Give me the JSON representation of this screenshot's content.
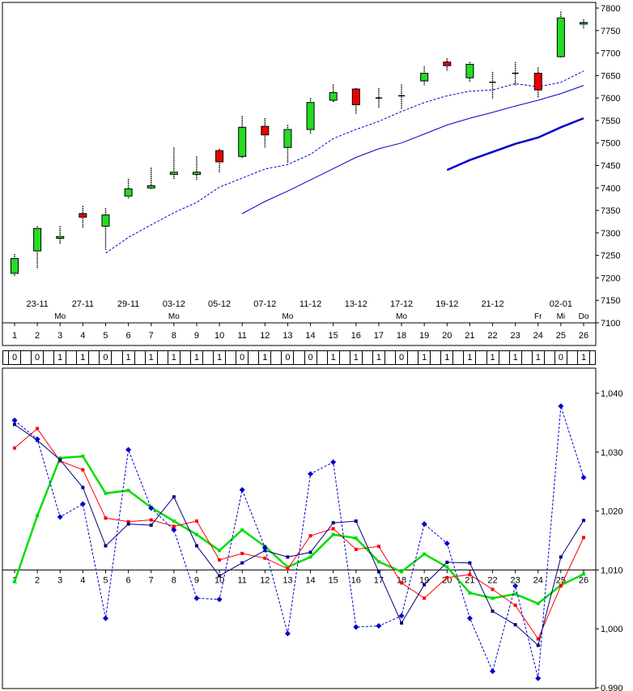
{
  "chart_data": [
    {
      "type": "candlestick",
      "title": "",
      "x": [
        1,
        2,
        3,
        4,
        5,
        6,
        7,
        8,
        9,
        10,
        11,
        12,
        13,
        14,
        15,
        16,
        17,
        18,
        19,
        20,
        21,
        22,
        23,
        24,
        25,
        26
      ],
      "ylim": [
        7100,
        7800
      ],
      "yticks": [
        7100,
        7150,
        7200,
        7250,
        7300,
        7350,
        7400,
        7450,
        7500,
        7550,
        7600,
        7650,
        7700,
        7750,
        7800
      ],
      "date_labels": [
        {
          "x": 2,
          "text": "23-11"
        },
        {
          "x": 4,
          "text": "27-11"
        },
        {
          "x": 6,
          "text": "29-11"
        },
        {
          "x": 8,
          "text": "03-12"
        },
        {
          "x": 10,
          "text": "05-12"
        },
        {
          "x": 12,
          "text": "07-12"
        },
        {
          "x": 14,
          "text": "11-12"
        },
        {
          "x": 16,
          "text": "13-12"
        },
        {
          "x": 18,
          "text": "17-12"
        },
        {
          "x": 20,
          "text": "19-12"
        },
        {
          "x": 22,
          "text": "21-12"
        },
        {
          "x": 25,
          "text": "02-01"
        }
      ],
      "day_labels": [
        {
          "x": 3,
          "text": "Mo"
        },
        {
          "x": 8,
          "text": "Mo"
        },
        {
          "x": 13,
          "text": "Mo"
        },
        {
          "x": 18,
          "text": "Mo"
        },
        {
          "x": 24,
          "text": "Fr"
        },
        {
          "x": 25,
          "text": "Mi"
        },
        {
          "x": 26,
          "text": "Do"
        }
      ],
      "candles": [
        {
          "x": 1,
          "open": 7210,
          "close": 7243,
          "high": 7253,
          "low": 7203
        },
        {
          "x": 2,
          "open": 7260,
          "close": 7310,
          "high": 7315,
          "low": 7220
        },
        {
          "x": 3,
          "open": 7288,
          "close": 7292,
          "high": 7315,
          "low": 7275
        },
        {
          "x": 4,
          "open": 7343,
          "close": 7335,
          "high": 7360,
          "low": 7310
        },
        {
          "x": 5,
          "open": 7315,
          "close": 7340,
          "high": 7355,
          "low": 7262
        },
        {
          "x": 6,
          "open": 7382,
          "close": 7398,
          "high": 7420,
          "low": 7375
        },
        {
          "x": 7,
          "open": 7400,
          "close": 7405,
          "high": 7445,
          "low": 7398
        },
        {
          "x": 8,
          "open": 7430,
          "close": 7435,
          "high": 7490,
          "low": 7420
        },
        {
          "x": 9,
          "open": 7430,
          "close": 7435,
          "high": 7470,
          "low": 7418
        },
        {
          "x": 10,
          "open": 7483,
          "close": 7458,
          "high": 7487,
          "low": 7435
        },
        {
          "x": 11,
          "open": 7470,
          "close": 7535,
          "high": 7560,
          "low": 7465
        },
        {
          "x": 12,
          "open": 7537,
          "close": 7518,
          "high": 7555,
          "low": 7490
        },
        {
          "x": 13,
          "open": 7490,
          "close": 7530,
          "high": 7540,
          "low": 7455
        },
        {
          "x": 14,
          "open": 7530,
          "close": 7590,
          "high": 7600,
          "low": 7520
        },
        {
          "x": 15,
          "open": 7595,
          "close": 7612,
          "high": 7630,
          "low": 7590
        },
        {
          "x": 16,
          "open": 7620,
          "close": 7585,
          "high": 7622,
          "low": 7565
        },
        {
          "x": 17,
          "open": 7600,
          "close": 7600,
          "high": 7622,
          "low": 7578
        },
        {
          "x": 18,
          "open": 7605,
          "close": 7605,
          "high": 7630,
          "low": 7575
        },
        {
          "x": 19,
          "open": 7638,
          "close": 7655,
          "high": 7670,
          "low": 7628
        },
        {
          "x": 20,
          "open": 7680,
          "close": 7672,
          "high": 7688,
          "low": 7660
        },
        {
          "x": 21,
          "open": 7645,
          "close": 7675,
          "high": 7680,
          "low": 7635
        },
        {
          "x": 22,
          "open": 7635,
          "close": 7635,
          "high": 7658,
          "low": 7598
        },
        {
          "x": 23,
          "open": 7655,
          "close": 7655,
          "high": 7680,
          "low": 7628
        },
        {
          "x": 24,
          "open": 7655,
          "close": 7618,
          "high": 7668,
          "low": 7600
        },
        {
          "x": 25,
          "open": 7692,
          "close": 7778,
          "high": 7792,
          "low": 7690
        },
        {
          "x": 26,
          "open": 7765,
          "close": 7768,
          "high": 7775,
          "low": 7755
        }
      ],
      "series": [
        {
          "name": "ma_dashed",
          "color": "#0000cc",
          "style": "dashed",
          "x": [
            5,
            6,
            7,
            8,
            9,
            10,
            11,
            12,
            13,
            14,
            15,
            16,
            17,
            18,
            19,
            20,
            21,
            22,
            23,
            24,
            25,
            26
          ],
          "values": [
            7255,
            7290,
            7318,
            7345,
            7368,
            7402,
            7422,
            7442,
            7452,
            7475,
            7510,
            7530,
            7548,
            7570,
            7590,
            7605,
            7615,
            7618,
            7632,
            7625,
            7635,
            7660
          ]
        },
        {
          "name": "ma_thin",
          "color": "#0000cc",
          "style": "solid",
          "x": [
            11,
            12,
            13,
            14,
            15,
            16,
            17,
            18,
            19,
            20,
            21,
            22,
            23,
            24,
            25,
            26
          ],
          "values": [
            7343,
            7370,
            7393,
            7418,
            7443,
            7468,
            7487,
            7500,
            7520,
            7540,
            7555,
            7568,
            7582,
            7595,
            7610,
            7628
          ]
        },
        {
          "name": "ma_thick",
          "color": "#0000cc",
          "style": "thick",
          "x": [
            20,
            21,
            22,
            23,
            24,
            25,
            26
          ],
          "values": [
            7440,
            7462,
            7480,
            7498,
            7512,
            7535,
            7555
          ]
        }
      ]
    },
    {
      "type": "binary_table",
      "values": [
        0,
        0,
        1,
        1,
        0,
        1,
        1,
        1,
        1,
        1,
        0,
        1,
        0,
        0,
        1,
        1,
        1,
        0,
        1,
        1,
        1,
        1,
        1,
        1,
        0,
        1
      ]
    },
    {
      "type": "line",
      "title": "",
      "x": [
        1,
        2,
        3,
        4,
        5,
        6,
        7,
        8,
        9,
        10,
        11,
        12,
        13,
        14,
        15,
        16,
        17,
        18,
        19,
        20,
        21,
        22,
        23,
        24,
        25,
        26
      ],
      "ylim": [
        0.99,
        1.042
      ],
      "yticks": [
        "0,990",
        "1,000",
        "1,010",
        "1,020",
        "1,030",
        "1,040"
      ],
      "reference_line": 1.01,
      "series": [
        {
          "name": "green",
          "color": "#00dd00",
          "values": [
            1.008,
            1.0192,
            1.029,
            1.0293,
            1.023,
            1.0235,
            1.0206,
            1.0183,
            1.016,
            1.0133,
            1.0168,
            1.014,
            1.0105,
            1.0122,
            1.016,
            1.0154,
            1.0114,
            1.0097,
            1.0127,
            1.0105,
            1.0061,
            1.0052,
            1.0059,
            1.0043,
            1.0074,
            1.0093
          ]
        },
        {
          "name": "red",
          "color": "#ff0000",
          "values": [
            1.0307,
            1.034,
            1.0285,
            1.027,
            1.0188,
            1.0182,
            1.0185,
            1.0174,
            1.0183,
            1.0117,
            1.0128,
            1.012,
            1.0102,
            1.0158,
            1.017,
            1.0135,
            1.014,
            1.0078,
            1.0052,
            1.0087,
            1.0092,
            1.0067,
            1.004,
            0.9983,
            1.0073,
            1.0155
          ]
        },
        {
          "name": "blue",
          "color": "#000080",
          "values": [
            1.0347,
            1.032,
            1.0287,
            1.024,
            1.0141,
            1.0178,
            1.0176,
            1.0224,
            1.0141,
            1.009,
            1.0112,
            1.0133,
            1.0122,
            1.013,
            1.018,
            1.0183,
            1.0097,
            1.001,
            1.0075,
            1.0113,
            1.0112,
            1.003,
            1.0007,
            0.9972,
            1.0122,
            1.0184
          ]
        },
        {
          "name": "blue_dashed",
          "color": "#0000cc",
          "style": "dashed",
          "values": [
            1.0354,
            1.0322,
            1.019,
            1.0212,
            1.0018,
            1.0304,
            1.0205,
            1.0168,
            1.0052,
            1.005,
            1.0236,
            1.0138,
            0.9992,
            1.0263,
            1.0283,
            1.0003,
            1.0005,
            1.0022,
            1.0178,
            1.0145,
            1.0018,
            0.9928,
            1.0073,
            0.9916,
            1.0378,
            1.0257
          ]
        }
      ]
    }
  ]
}
